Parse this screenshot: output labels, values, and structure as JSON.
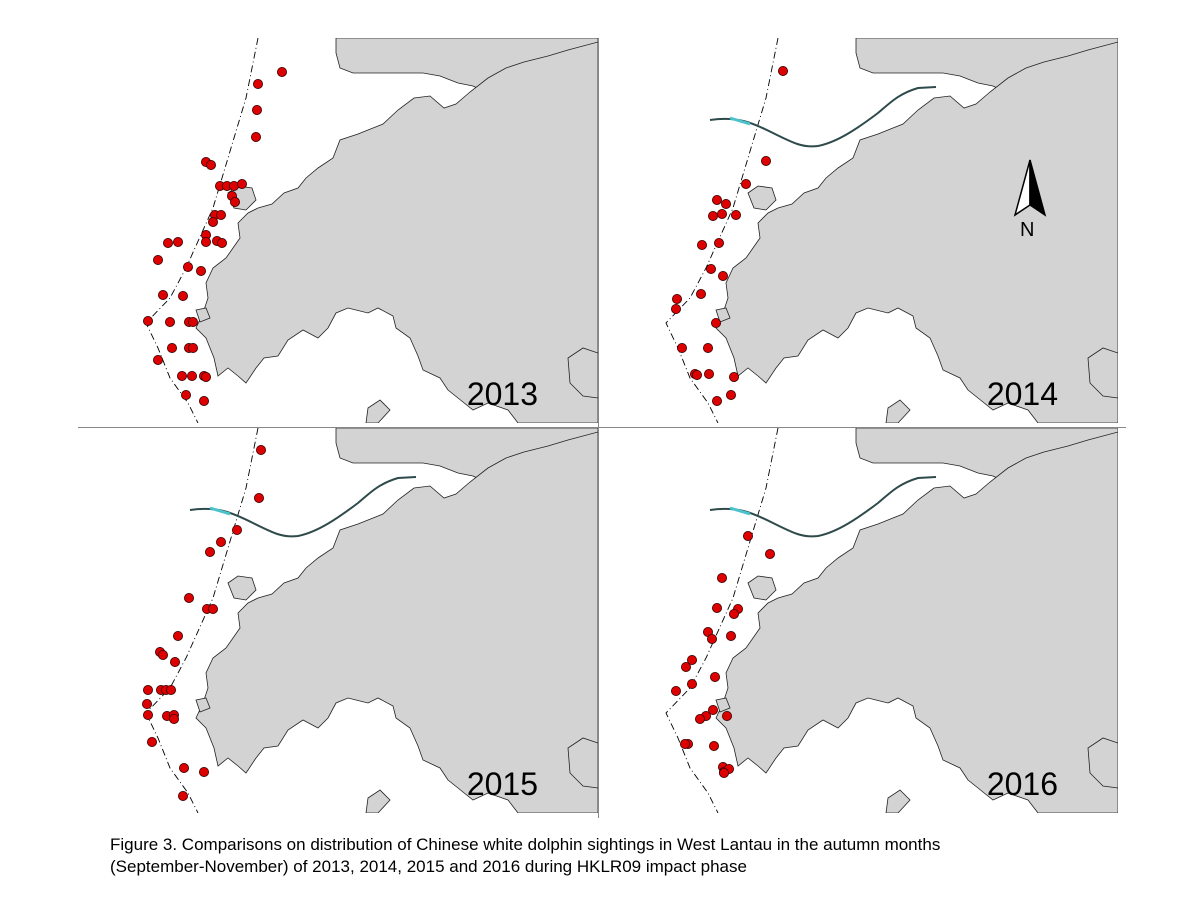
{
  "panels": [
    {
      "year": "2013",
      "show_bridge": false
    },
    {
      "year": "2014",
      "show_bridge": true
    },
    {
      "year": "2015",
      "show_bridge": true
    },
    {
      "year": "2016",
      "show_bridge": true
    }
  ],
  "north_label": "N",
  "caption_line1": "Figure 3.  Comparisons on distribution of Chinese white dolphin sightings in West Lantau in the autumn months",
  "caption_line2": "(September-November) of 2013, 2014, 2015 and 2016 during HKLR09 impact phase",
  "colors": {
    "land": "#d3d3d3",
    "sighting": "#dd0000",
    "bridge": "#2e4a4a",
    "bridge_accent": "#4cc3cc"
  }
}
